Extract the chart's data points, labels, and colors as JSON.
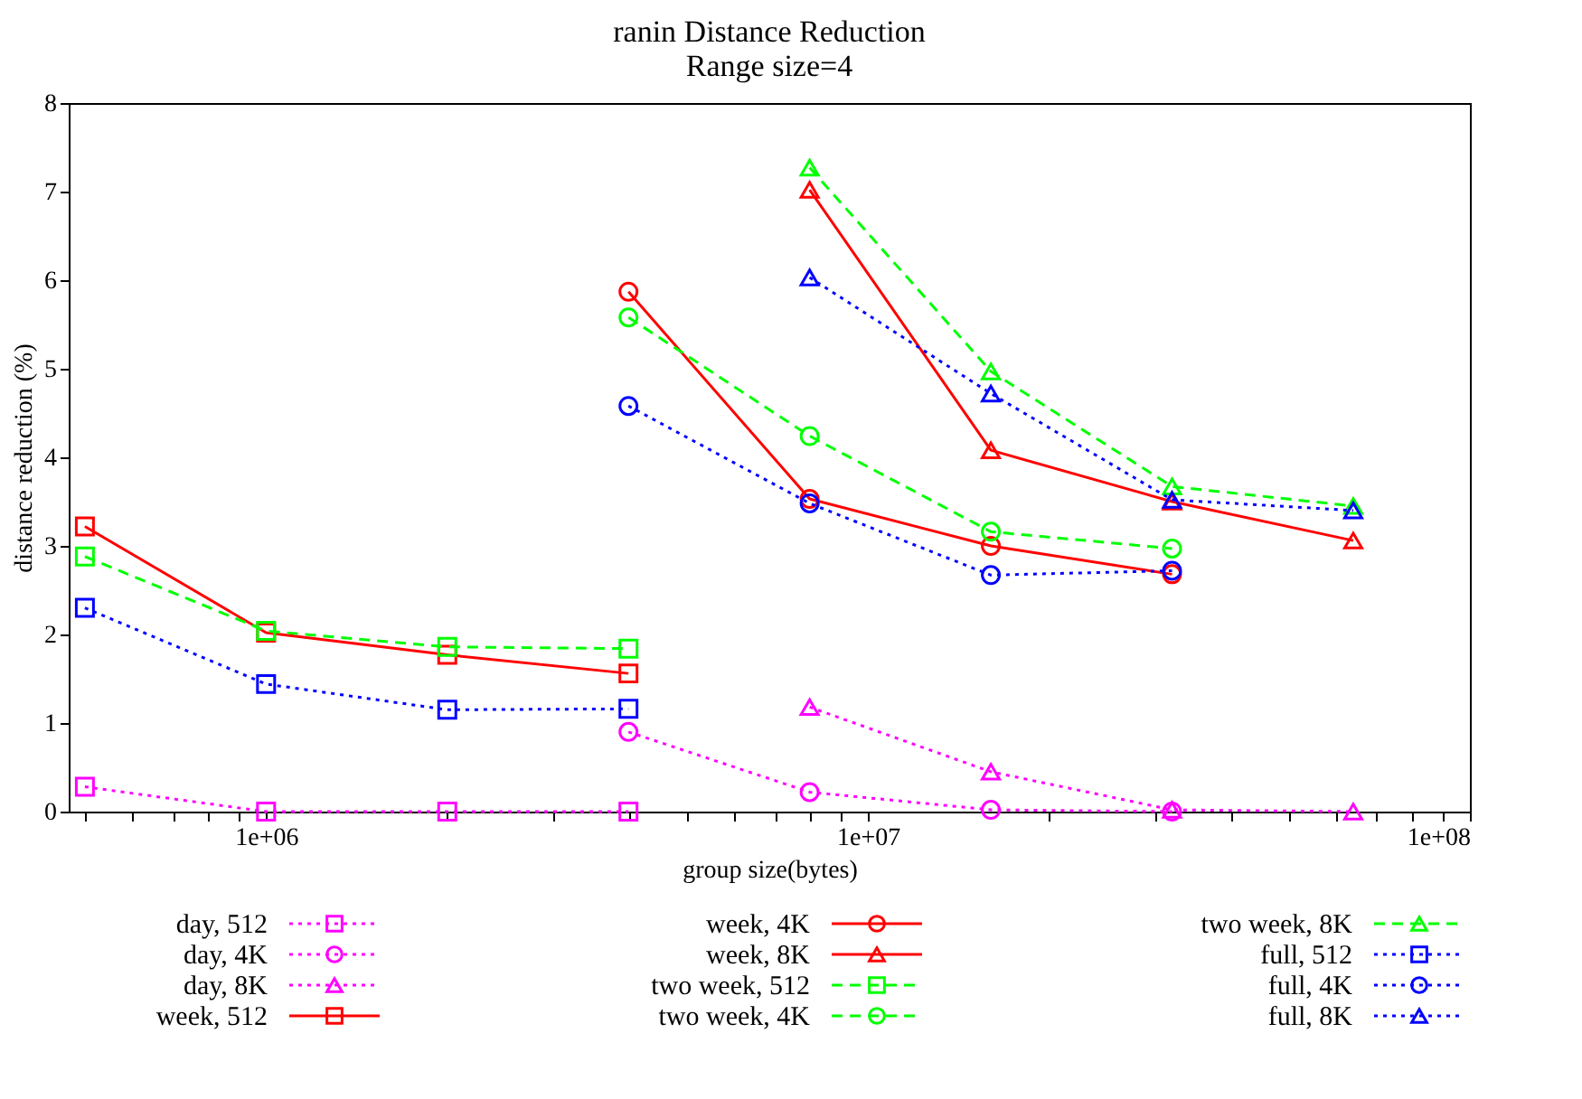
{
  "chart_data": {
    "type": "line",
    "title": "ranin Distance Reduction",
    "subtitle": "Range size=4",
    "xlabel": "group size(bytes)",
    "ylabel": "distance reduction (%)",
    "log": "x",
    "grid": false,
    "legend": "bottom",
    "xlim": [
      470000,
      100000000
    ],
    "xticks": [
      {
        "value": 500000,
        "label": null
      },
      {
        "value": 600000,
        "label": null
      },
      {
        "value": 700000,
        "label": null
      },
      {
        "value": 800000,
        "label": null
      },
      {
        "value": 900000,
        "label": null
      },
      {
        "value": 1000000,
        "label": "1e+06"
      },
      {
        "value": 2000000,
        "label": null
      },
      {
        "value": 3000000,
        "label": null
      },
      {
        "value": 4000000,
        "label": null
      },
      {
        "value": 5000000,
        "label": null
      },
      {
        "value": 6000000,
        "label": null
      },
      {
        "value": 7000000,
        "label": null
      },
      {
        "value": 8000000,
        "label": null
      },
      {
        "value": 9000000,
        "label": null
      },
      {
        "value": 10000000,
        "label": "1e+07"
      },
      {
        "value": 20000000,
        "label": null
      },
      {
        "value": 30000000,
        "label": null
      },
      {
        "value": 40000000,
        "label": null
      },
      {
        "value": 50000000,
        "label": null
      },
      {
        "value": 60000000,
        "label": null
      },
      {
        "value": 70000000,
        "label": null
      },
      {
        "value": 80000000,
        "label": null
      },
      {
        "value": 90000000,
        "label": null
      },
      {
        "value": 100000000,
        "label": "1e+08"
      }
    ],
    "ylim": [
      0,
      8
    ],
    "yticks": [
      0,
      1,
      2,
      3,
      4,
      5,
      6,
      7,
      8
    ],
    "series": [
      {
        "name": "day, 512",
        "color": "#ff00ff",
        "marker": "square",
        "line_style": "dotted",
        "x": [
          500000,
          1000000,
          2000000,
          4000000
        ],
        "values": [
          0.28,
          0,
          0,
          0
        ]
      },
      {
        "name": "day, 4K",
        "color": "#ff00ff",
        "marker": "circle",
        "line_style": "dotted",
        "x": [
          4000000,
          8000000,
          16000000,
          32000000
        ],
        "values": [
          0.9,
          0.22,
          0.02,
          0
        ]
      },
      {
        "name": "day, 8K",
        "color": "#ff00ff",
        "marker": "triangle",
        "line_style": "dotted",
        "x": [
          8000000,
          16000000,
          32000000,
          64000000
        ],
        "values": [
          1.18,
          0.45,
          0.02,
          0
        ]
      },
      {
        "name": "week, 512",
        "color": "#ff0000",
        "marker": "square",
        "line_style": "solid",
        "x": [
          500000,
          1000000,
          2000000,
          4000000
        ],
        "values": [
          3.22,
          2.02,
          1.77,
          1.56
        ]
      },
      {
        "name": "week, 4K",
        "color": "#ff0000",
        "marker": "circle",
        "line_style": "solid",
        "x": [
          4000000,
          8000000,
          16000000,
          32000000
        ],
        "values": [
          5.87,
          3.53,
          3.0,
          2.68
        ]
      },
      {
        "name": "week, 8K",
        "color": "#ff0000",
        "marker": "triangle",
        "line_style": "solid",
        "x": [
          8000000,
          16000000,
          32000000,
          64000000
        ],
        "values": [
          7.02,
          4.08,
          3.5,
          3.06
        ]
      },
      {
        "name": "two week, 512",
        "color": "#00ff00",
        "marker": "square",
        "line_style": "dashed",
        "x": [
          500000,
          1000000,
          2000000,
          4000000
        ],
        "values": [
          2.88,
          2.04,
          1.86,
          1.84
        ]
      },
      {
        "name": "two week, 4K",
        "color": "#00ff00",
        "marker": "circle",
        "line_style": "dashed",
        "x": [
          4000000,
          8000000,
          16000000,
          32000000
        ],
        "values": [
          5.58,
          4.24,
          3.16,
          2.97
        ]
      },
      {
        "name": "two week, 8K",
        "color": "#00ff00",
        "marker": "triangle",
        "line_style": "dashed",
        "x": [
          8000000,
          16000000,
          32000000,
          64000000
        ],
        "values": [
          7.27,
          4.97,
          3.67,
          3.45
        ]
      },
      {
        "name": "full, 512",
        "color": "#0000ff",
        "marker": "square",
        "line_style": "dotted",
        "x": [
          500000,
          1000000,
          2000000,
          4000000
        ],
        "values": [
          2.3,
          1.44,
          1.15,
          1.16
        ]
      },
      {
        "name": "full, 4K",
        "color": "#0000ff",
        "marker": "circle",
        "line_style": "dotted",
        "x": [
          4000000,
          8000000,
          16000000,
          32000000
        ],
        "values": [
          4.58,
          3.48,
          2.67,
          2.72
        ]
      },
      {
        "name": "full, 8K",
        "color": "#0000ff",
        "marker": "triangle",
        "line_style": "dotted",
        "x": [
          8000000,
          16000000,
          32000000,
          64000000
        ],
        "values": [
          6.03,
          4.72,
          3.52,
          3.4
        ]
      }
    ]
  }
}
